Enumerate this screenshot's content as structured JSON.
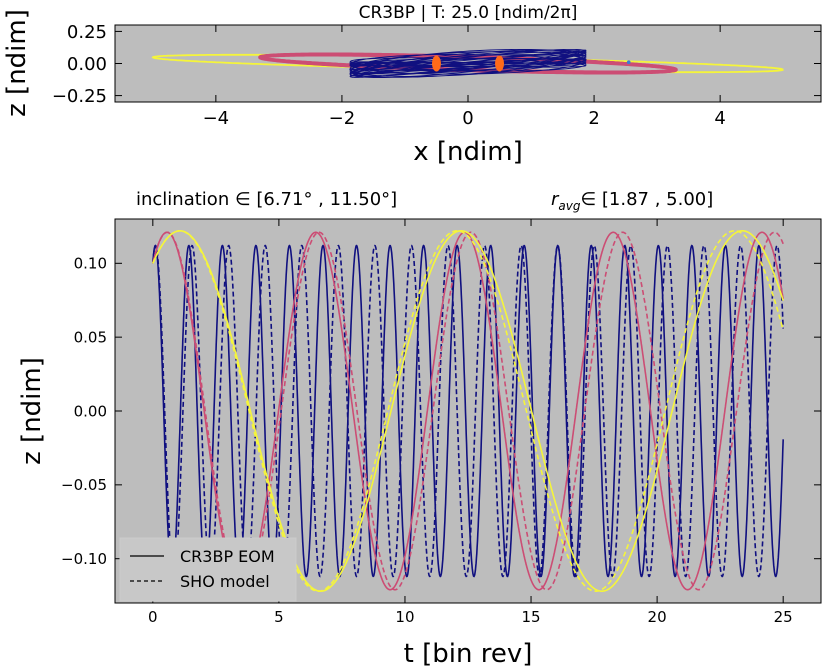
{
  "colors": {
    "panel_bg": "#bdbdbd",
    "yellow": "#f5f53a",
    "crimson": "#cc4d74",
    "navy": "#101080",
    "orange": "#ff6a1a",
    "blue_dot": "#3a7bd5"
  },
  "chart_data": [
    {
      "type": "line",
      "title": "CR3BP | T: 25.0 [ndim/2π]",
      "xlabel": "x [ndim]",
      "ylabel": "z [ndim]",
      "xlim": [
        -5.6,
        5.6
      ],
      "ylim": [
        -0.3,
        0.3
      ],
      "xticks": [
        -4,
        -2,
        0,
        2,
        4
      ],
      "xtick_labels": [
        "−4",
        "−2",
        "0",
        "2",
        "4"
      ],
      "yticks": [
        0.25,
        0.0,
        -0.25
      ],
      "ytick_labels": [
        "0.25",
        "0.00",
        "−0.25"
      ],
      "orbits": [
        {
          "name": "orbit r=5.00",
          "color": "yellow",
          "a": 5.0,
          "z_amp": 0.12
        },
        {
          "name": "orbit r=3.3",
          "color": "crimson",
          "a": 3.3,
          "z_amp": 0.12
        },
        {
          "name": "orbit r=1.87",
          "color": "navy",
          "a": 1.87,
          "z_amp": 0.11
        }
      ],
      "primaries": [
        {
          "name": "primary 1",
          "x": -0.5,
          "color": "orange"
        },
        {
          "name": "primary 2",
          "x": 0.5,
          "color": "orange"
        }
      ]
    },
    {
      "type": "line",
      "inclination_label": "inclination ∈  [6.71° , 11.50°]",
      "r_avg_symbol": "r",
      "r_avg_subscript": "avg",
      "r_avg_label": "∈   [1.87 , 5.00]",
      "xlabel": "t [bin rev]",
      "ylabel": "z [ndim]",
      "xlim": [
        -1.5,
        26.5
      ],
      "ylim": [
        -0.13,
        0.13
      ],
      "xticks": [
        0,
        5,
        10,
        15,
        20,
        25
      ],
      "xtick_labels": [
        "0",
        "5",
        "10",
        "15",
        "20",
        "25"
      ],
      "yticks": [
        0.1,
        0.05,
        0.0,
        -0.05,
        -0.1
      ],
      "ytick_labels": [
        "0.10",
        "0.05",
        "0.00",
        "−0.05",
        "−0.10"
      ],
      "series": [
        {
          "name": "r=1.87 CR3BP EOM",
          "color": "navy",
          "style": "solid",
          "z0": 0.1,
          "amp": 0.112,
          "period": 1.33,
          "t_end": 25
        },
        {
          "name": "r=1.87 SHO model",
          "color": "navy",
          "style": "dashed",
          "z0": 0.1,
          "amp": 0.112,
          "period": 1.45,
          "t_end": 25
        },
        {
          "name": "r=3.3 CR3BP EOM",
          "color": "crimson",
          "style": "solid",
          "z0": 0.1,
          "amp": 0.121,
          "period": 5.9,
          "t_end": 25
        },
        {
          "name": "r=3.3 SHO model",
          "color": "crimson",
          "style": "dashed",
          "z0": 0.1,
          "amp": 0.121,
          "period": 6.02,
          "t_end": 25
        },
        {
          "name": "r=5.00 CR3BP EOM",
          "color": "yellow",
          "style": "solid",
          "z0": 0.1,
          "amp": 0.122,
          "period": 11.15,
          "t_end": 25
        },
        {
          "name": "r=5.00 SHO model",
          "color": "yellow",
          "style": "dashed",
          "z0": 0.1,
          "amp": 0.122,
          "period": 11.0,
          "t_end": 25
        }
      ],
      "legend": {
        "position": "bottom-left",
        "entries": [
          {
            "label": "CR3BP EOM",
            "style": "solid"
          },
          {
            "label": "SHO model",
            "style": "dashed"
          }
        ]
      }
    }
  ]
}
